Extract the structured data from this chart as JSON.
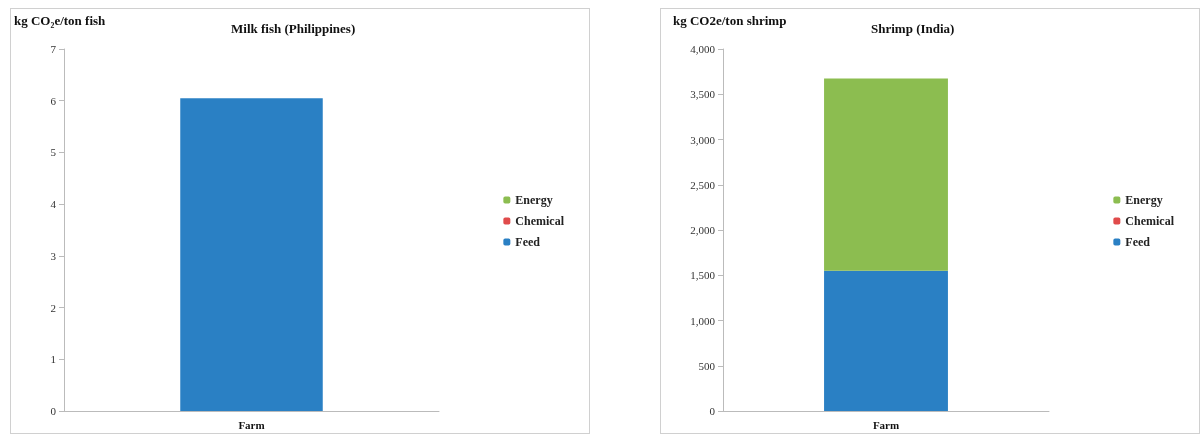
{
  "chart_data": [
    {
      "type": "bar",
      "title": "Milk fish (Philippines)",
      "ylabel": "kg CO₂e/ton fish",
      "categories": [
        "Farm"
      ],
      "stacked": true,
      "legend": "right",
      "series": [
        {
          "name": "Feed",
          "color": "#2a80c4",
          "values": [
            6.05
          ]
        },
        {
          "name": "Chemical",
          "color": "#e04b4b",
          "values": [
            0
          ]
        },
        {
          "name": "Energy",
          "color": "#8cbd50",
          "values": [
            0
          ]
        }
      ],
      "ylim": [
        0,
        7
      ],
      "yticks": [
        0,
        1,
        2,
        3,
        4,
        5,
        6,
        7
      ]
    },
    {
      "type": "bar",
      "title": "Shrimp (India)",
      "ylabel": "kg CO2e/ton shrimp",
      "categories": [
        "Farm"
      ],
      "stacked": true,
      "legend": "right",
      "series": [
        {
          "name": "Feed",
          "color": "#2a80c4",
          "values": [
            1550
          ]
        },
        {
          "name": "Chemical",
          "color": "#e04b4b",
          "values": [
            0
          ]
        },
        {
          "name": "Energy",
          "color": "#8cbd50",
          "values": [
            2125
          ]
        }
      ],
      "ylim": [
        0,
        4000
      ],
      "yticks": [
        0,
        500,
        {
          "value": 1000,
          "label": "1,000"
        },
        {
          "value": 1500,
          "label": "1,500"
        },
        {
          "value": 2000,
          "label": "2,000"
        },
        {
          "value": 2500,
          "label": "2,500"
        },
        {
          "value": 3000,
          "label": "3,000"
        },
        {
          "value": 3500,
          "label": "3,500"
        },
        {
          "value": 4000,
          "label": "4,000"
        }
      ]
    }
  ]
}
